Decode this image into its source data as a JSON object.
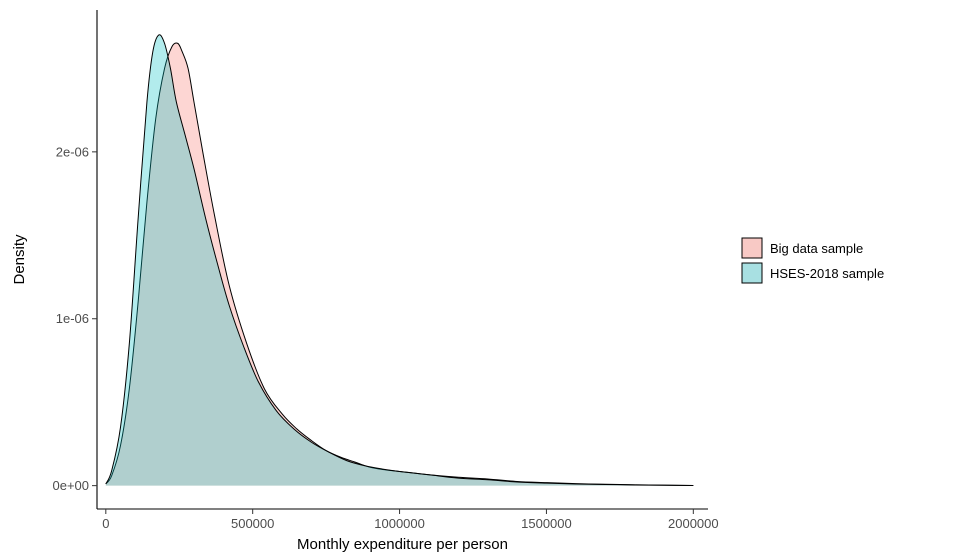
{
  "chart_data": {
    "type": "area",
    "subtype": "density",
    "title": "",
    "xlabel": "Monthly expenditure per person",
    "ylabel": "Density",
    "xlim": [
      -30000,
      2050000
    ],
    "ylim": [
      -1.4e-07,
      2.85e-06
    ],
    "x_ticks": [
      0,
      500000,
      1000000,
      1500000,
      2000000
    ],
    "x_tick_labels": [
      "0",
      "500000",
      "1000000",
      "1500000",
      "2000000"
    ],
    "y_ticks": [
      0,
      1e-06,
      2e-06
    ],
    "y_tick_labels": [
      "0e+00",
      "1e-06",
      "2e-06"
    ],
    "grid": false,
    "legend_position": "right",
    "series": [
      {
        "name": "Big data sample",
        "color": "#f8766d",
        "fill": "#f8c9c5",
        "x": [
          0,
          20000,
          50000,
          80000,
          110000,
          140000,
          170000,
          200000,
          225000,
          245000,
          260000,
          280000,
          300000,
          330000,
          370000,
          420000,
          480000,
          540000,
          600000,
          650000,
          700000,
          750000,
          800000,
          850000,
          900000,
          950000,
          1000000,
          1100000,
          1200000,
          1300000,
          1400000,
          1500000,
          1600000,
          1700000,
          1800000,
          1900000,
          2000000
        ],
        "values": [
          1e-08,
          6e-08,
          2.4e-07,
          5.8e-07,
          1.1e-06,
          1.7e-06,
          2.2e-06,
          2.5e-06,
          2.63e-06,
          2.65e-06,
          2.6e-06,
          2.5e-06,
          2.3e-06,
          2e-06,
          1.62e-06,
          1.2e-06,
          8.5e-07,
          5.8e-07,
          4.3e-07,
          3.4e-07,
          2.7e-07,
          2.1e-07,
          1.7e-07,
          1.4e-07,
          1.1e-07,
          9.5e-08,
          8.5e-08,
          6.5e-08,
          5e-08,
          4e-08,
          2.5e-08,
          1.8e-08,
          1.2e-08,
          8e-09,
          5e-09,
          3e-09,
          1e-09
        ]
      },
      {
        "name": "HSES-2018 sample",
        "color": "#00bfc4",
        "fill": "#a8e0e2",
        "x": [
          0,
          20000,
          50000,
          80000,
          110000,
          140000,
          160000,
          180000,
          200000,
          220000,
          240000,
          270000,
          300000,
          340000,
          380000,
          420000,
          470000,
          520000,
          580000,
          640000,
          700000,
          760000,
          820000,
          880000,
          940000,
          1000000,
          1100000,
          1200000,
          1300000,
          1400000,
          1500000,
          1600000,
          1700000,
          1800000,
          1900000,
          2000000
        ],
        "values": [
          1e-08,
          9e-08,
          3.5e-07,
          8.5e-07,
          1.6e-06,
          2.3e-06,
          2.6e-06,
          2.7e-06,
          2.65e-06,
          2.5e-06,
          2.3e-06,
          2.1e-06,
          1.9e-06,
          1.6e-06,
          1.33e-06,
          1.08e-06,
          8.3e-07,
          6.2e-07,
          4.5e-07,
          3.4e-07,
          2.6e-07,
          2e-07,
          1.5e-07,
          1.2e-07,
          1e-07,
          8.5e-08,
          6.5e-08,
          4.5e-08,
          3.5e-08,
          2.2e-08,
          1.5e-08,
          1e-08,
          7e-09,
          4e-09,
          2e-09,
          1e-09
        ]
      }
    ]
  }
}
